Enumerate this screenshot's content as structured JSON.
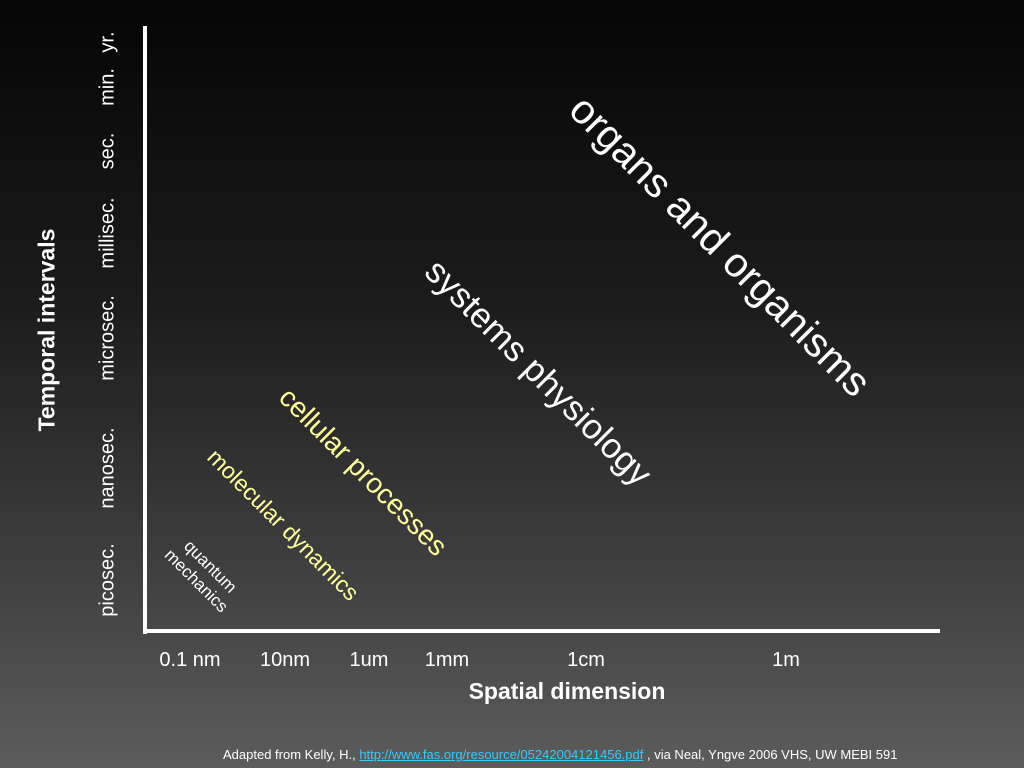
{
  "y_axis": {
    "title": "Temporal intervals",
    "ticks": [
      "picosec.",
      "nanosec.",
      "microsec.",
      "millisec.",
      "sec.",
      "min.",
      "yr."
    ]
  },
  "x_axis": {
    "title": "Spatial dimension",
    "ticks": [
      "0.1 nm",
      "10nm",
      "1um",
      "1mm",
      "1cm",
      "1m"
    ]
  },
  "regions": {
    "organs": "organs and organisms",
    "systems": "systems physiology",
    "cellular": "cellular processes",
    "molecular": "molecular dynamics",
    "quantum_line1": "quantum",
    "quantum_line2": "mechanics"
  },
  "colors": {
    "highlight": "#ffff99",
    "link": "#33ccff",
    "text": "#ffffff"
  },
  "citation": {
    "prefix": "Adapted from Kelly, H., ",
    "link_text": "http://www.fas.org/resource/05242004121456.pdf",
    "suffix": " , via Neal, Yngve 2006 VHS, UW MEBI 591"
  }
}
